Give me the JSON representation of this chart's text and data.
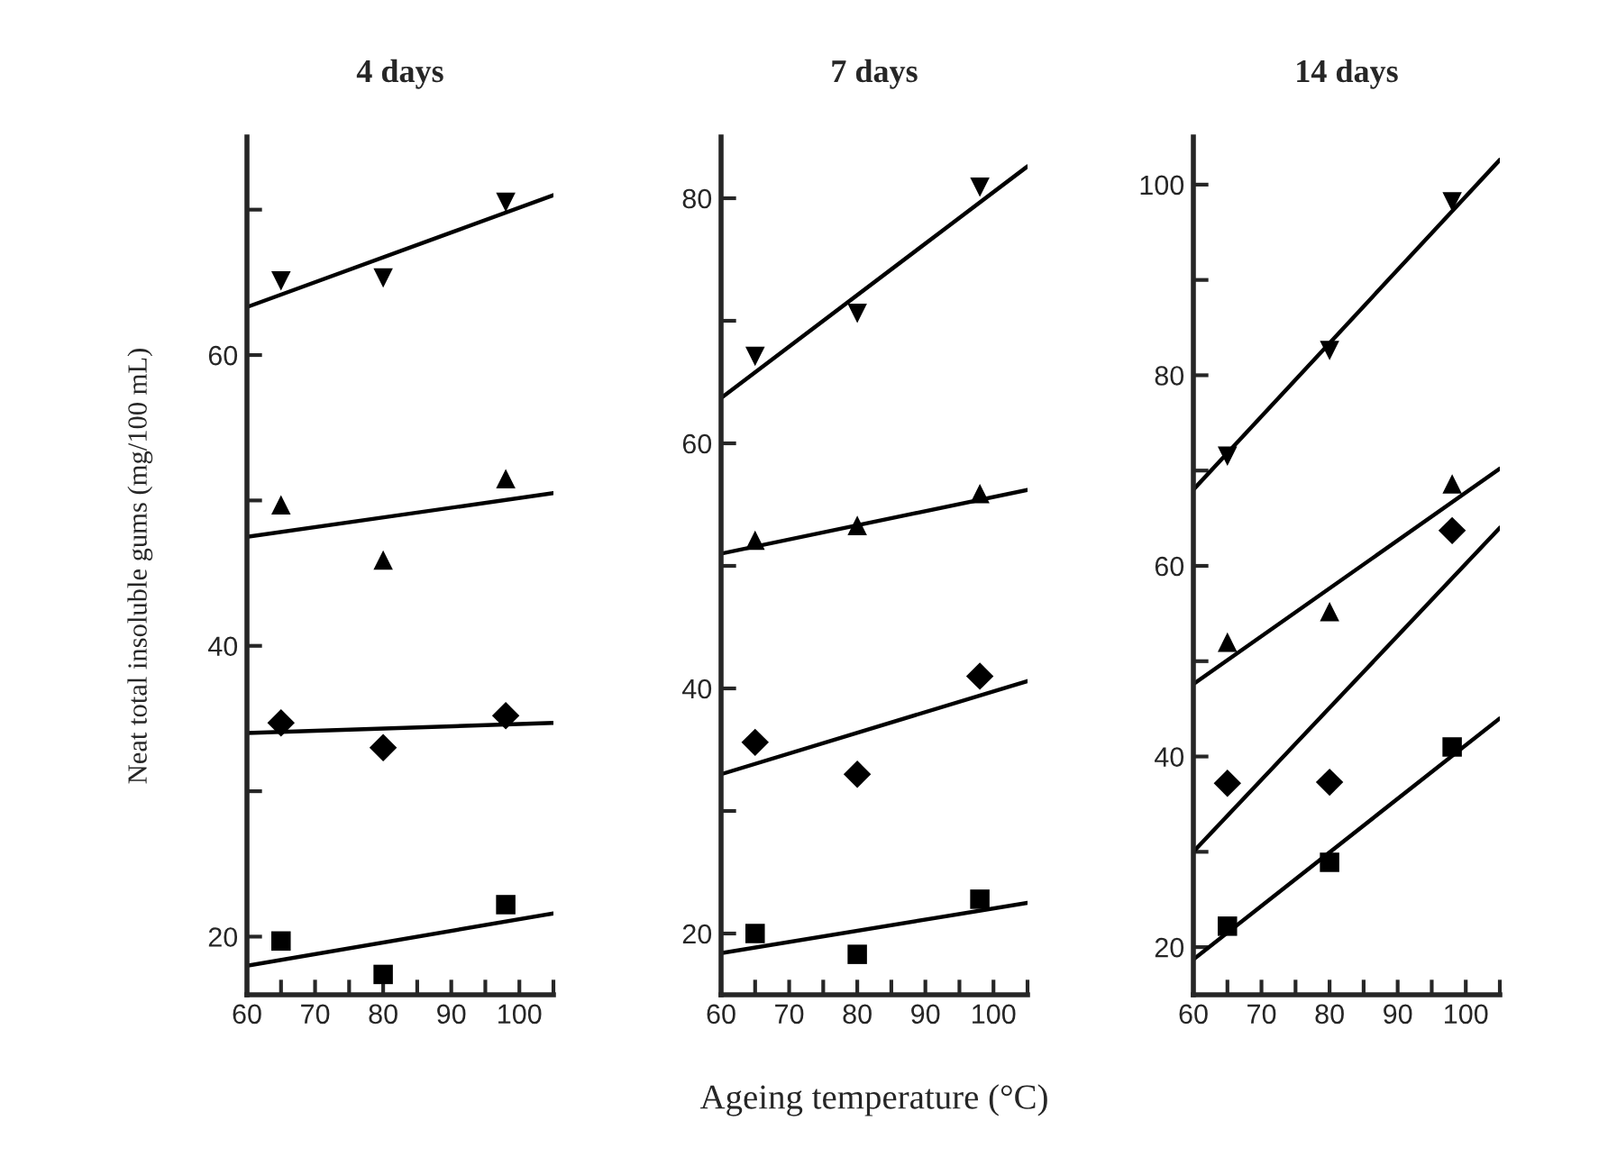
{
  "chart_data": [
    {
      "type": "scatter",
      "title": "4 days",
      "ylabel": "Neat total insoluble gums (mg/100 mL)",
      "xlim": [
        60,
        105
      ],
      "ylim": [
        16,
        75
      ],
      "xticks": [
        60,
        {
          "value": 65,
          "label": null
        },
        70,
        {
          "value": 75,
          "label": null
        },
        80,
        {
          "value": 85,
          "label": null
        },
        90,
        {
          "value": 95,
          "label": null
        },
        100,
        {
          "value": 105,
          "label": null
        }
      ],
      "yticks": [
        20,
        {
          "value": 30,
          "label": null
        },
        40,
        {
          "value": 50,
          "label": null
        },
        60,
        {
          "value": 70,
          "label": null
        }
      ],
      "grid": false,
      "legend": false,
      "series": [
        {
          "type": "scatter",
          "marker": "triangle_down",
          "color": "#000000",
          "x": [
            65,
            80,
            98
          ],
          "values": [
            65.1,
            65.3,
            70.5
          ]
        },
        {
          "type": "scatter",
          "marker": "triangle",
          "color": "#000000",
          "x": [
            65,
            80,
            98
          ],
          "values": [
            49.7,
            45.9,
            51.5
          ]
        },
        {
          "type": "scatter",
          "marker": "diamond",
          "color": "#000000",
          "x": [
            65,
            80,
            98
          ],
          "values": [
            34.7,
            33.0,
            35.2
          ]
        },
        {
          "type": "scatter",
          "marker": "square",
          "color": "#000000",
          "x": [
            65,
            80,
            98
          ],
          "values": [
            19.7,
            17.4,
            22.2
          ]
        },
        {
          "type": "line",
          "marker": "none",
          "line_style": "solid",
          "color": "#000000",
          "x": [
            60,
            105
          ],
          "values": [
            63.3,
            71.0
          ]
        },
        {
          "type": "line",
          "marker": "none",
          "line_style": "solid",
          "color": "#000000",
          "x": [
            60,
            105
          ],
          "values": [
            47.5,
            50.5
          ]
        },
        {
          "type": "line",
          "marker": "none",
          "line_style": "solid",
          "color": "#000000",
          "x": [
            60,
            105
          ],
          "values": [
            34.0,
            34.7
          ]
        },
        {
          "type": "line",
          "marker": "none",
          "line_style": "solid",
          "color": "#000000",
          "x": [
            60,
            105
          ],
          "values": [
            18.0,
            21.6
          ]
        }
      ]
    },
    {
      "type": "scatter",
      "title": "7 days",
      "xlabel": "Ageing temperature (°C)",
      "xlim": [
        60,
        105
      ],
      "ylim": [
        15,
        85
      ],
      "xticks": [
        60,
        {
          "value": 65,
          "label": null
        },
        70,
        {
          "value": 75,
          "label": null
        },
        80,
        {
          "value": 85,
          "label": null
        },
        90,
        {
          "value": 95,
          "label": null
        },
        100,
        {
          "value": 105,
          "label": null
        }
      ],
      "yticks": [
        20,
        {
          "value": 30,
          "label": null
        },
        40,
        {
          "value": 50,
          "label": null
        },
        60,
        {
          "value": 70,
          "label": null
        },
        80
      ],
      "grid": false,
      "legend": false,
      "series": [
        {
          "type": "scatter",
          "marker": "triangle_down",
          "color": "#000000",
          "x": [
            65,
            80,
            98
          ],
          "values": [
            67.1,
            70.6,
            80.9
          ]
        },
        {
          "type": "scatter",
          "marker": "triangle",
          "color": "#000000",
          "x": [
            65,
            80,
            98
          ],
          "values": [
            52.1,
            53.3,
            55.9
          ]
        },
        {
          "type": "scatter",
          "marker": "diamond",
          "color": "#000000",
          "x": [
            65,
            80,
            98
          ],
          "values": [
            35.6,
            33.0,
            41.0
          ]
        },
        {
          "type": "scatter",
          "marker": "square",
          "color": "#000000",
          "x": [
            65,
            80,
            98
          ],
          "values": [
            20.0,
            18.3,
            22.8
          ]
        },
        {
          "type": "line",
          "marker": "none",
          "line_style": "solid",
          "color": "#000000",
          "x": [
            60,
            105
          ],
          "values": [
            63.7,
            82.6
          ]
        },
        {
          "type": "line",
          "marker": "none",
          "line_style": "solid",
          "color": "#000000",
          "x": [
            60,
            105
          ],
          "values": [
            51.0,
            56.2
          ]
        },
        {
          "type": "line",
          "marker": "none",
          "line_style": "solid",
          "color": "#000000",
          "x": [
            60,
            105
          ],
          "values": [
            33.0,
            40.6
          ]
        },
        {
          "type": "line",
          "marker": "none",
          "line_style": "solid",
          "color": "#000000",
          "x": [
            60,
            105
          ],
          "values": [
            18.4,
            22.5
          ]
        }
      ]
    },
    {
      "type": "scatter",
      "title": "14 days",
      "xlim": [
        60,
        105
      ],
      "ylim": [
        15,
        105
      ],
      "xticks": [
        60,
        {
          "value": 65,
          "label": null
        },
        70,
        {
          "value": 75,
          "label": null
        },
        80,
        {
          "value": 85,
          "label": null
        },
        90,
        {
          "value": 95,
          "label": null
        },
        100,
        {
          "value": 105,
          "label": null
        }
      ],
      "yticks": [
        20,
        {
          "value": 30,
          "label": null
        },
        40,
        {
          "value": 50,
          "label": null
        },
        60,
        {
          "value": 70,
          "label": null
        },
        80,
        {
          "value": 90,
          "label": null
        },
        100
      ],
      "grid": false,
      "legend": false,
      "series": [
        {
          "type": "scatter",
          "marker": "triangle_down",
          "color": "#000000",
          "x": [
            65,
            80,
            98
          ],
          "values": [
            71.5,
            82.6,
            98.2
          ]
        },
        {
          "type": "scatter",
          "marker": "triangle",
          "color": "#000000",
          "x": [
            65,
            80,
            98
          ],
          "values": [
            52.0,
            55.2,
            68.6
          ]
        },
        {
          "type": "scatter",
          "marker": "diamond",
          "color": "#000000",
          "x": [
            65,
            80,
            98
          ],
          "values": [
            37.2,
            37.3,
            63.7
          ]
        },
        {
          "type": "scatter",
          "marker": "square",
          "color": "#000000",
          "x": [
            65,
            80,
            98
          ],
          "values": [
            22.2,
            28.9,
            41.0
          ]
        },
        {
          "type": "line",
          "marker": "none",
          "line_style": "solid",
          "color": "#000000",
          "x": [
            60,
            105
          ],
          "values": [
            68.0,
            102.6
          ]
        },
        {
          "type": "line",
          "marker": "none",
          "line_style": "solid",
          "color": "#000000",
          "x": [
            60,
            105
          ],
          "values": [
            47.6,
            70.2
          ]
        },
        {
          "type": "line",
          "marker": "none",
          "line_style": "solid",
          "color": "#000000",
          "x": [
            60,
            105
          ],
          "values": [
            30.0,
            64.0
          ]
        },
        {
          "type": "line",
          "marker": "none",
          "line_style": "solid",
          "color": "#000000",
          "x": [
            60,
            105
          ],
          "values": [
            18.7,
            44.0
          ]
        }
      ]
    }
  ]
}
